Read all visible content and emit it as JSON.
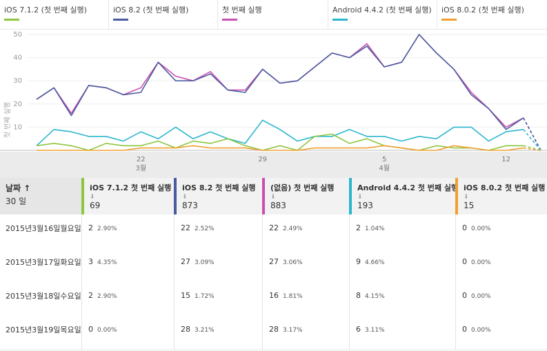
{
  "colors": {
    "ios712": "#8dc63f",
    "ios82": "#4a5b9e",
    "first": "#c94fb0",
    "android": "#2ab6cc",
    "ios802": "#f0a030",
    "grid": "#eeeeee",
    "axis": "#999999"
  },
  "legend": [
    {
      "label": "iOS 7.1.2 (첫 번째 실행)",
      "color": "#8dc63f"
    },
    {
      "label": "iOS 8.2 (첫 번째 실행)",
      "color": "#4a5b9e"
    },
    {
      "label": "첫 번째 실행",
      "color": "#c94fb0"
    },
    {
      "label": "Android 4.4.2 (첫 번째 실행)",
      "color": "#2ab6cc"
    },
    {
      "label": "iOS 8.0.2 (첫 번째 실행)",
      "color": "#f0a030"
    }
  ],
  "chart_data": {
    "type": "line",
    "ylabel": "첫 번째 실행",
    "ylim": [
      0,
      50
    ],
    "yticks": [
      10,
      20,
      30,
      40,
      50
    ],
    "x": [
      16,
      17,
      18,
      19,
      20,
      21,
      22,
      23,
      24,
      25,
      26,
      27,
      28,
      29,
      30,
      31,
      1,
      2,
      3,
      4,
      5,
      6,
      7,
      8,
      9,
      10,
      11,
      12,
      13,
      14
    ],
    "xticks": [
      {
        "day": 22,
        "label": "22",
        "sub": "3월"
      },
      {
        "day": 29,
        "label": "29",
        "sub": ""
      },
      {
        "day": 5,
        "label": "5",
        "sub": "4월"
      },
      {
        "day": 12,
        "label": "12",
        "sub": ""
      }
    ],
    "dashed_last_segment": true,
    "series": [
      {
        "key": "first",
        "name": "첫 번째 실행",
        "values": [
          22,
          27,
          16,
          28,
          27,
          24,
          27,
          38,
          32,
          30,
          34,
          26,
          26,
          35,
          29,
          30,
          36,
          42,
          40,
          46,
          36,
          38,
          50,
          42,
          35,
          25,
          18,
          10,
          14,
          0
        ]
      },
      {
        "key": "ios82",
        "name": "iOS 8.2 (첫 번째 실행)",
        "values": [
          22,
          27,
          15,
          28,
          27,
          24,
          25,
          38,
          30,
          30,
          33,
          26,
          25,
          35,
          29,
          30,
          36,
          42,
          40,
          45,
          36,
          38,
          50,
          42,
          35,
          24,
          18,
          9,
          14,
          0
        ]
      },
      {
        "key": "android",
        "name": "Android 4.4.2 (첫 번째 실행)",
        "values": [
          2,
          9,
          8,
          6,
          6,
          4,
          8,
          5,
          10,
          5,
          8,
          5,
          3,
          13,
          9,
          4,
          6,
          6,
          9,
          6,
          6,
          4,
          6,
          5,
          10,
          10,
          4,
          8,
          9,
          0
        ]
      },
      {
        "key": "ios712",
        "name": "iOS 7.1.2 (첫 번째 실행)",
        "values": [
          2,
          3,
          2,
          0,
          3,
          2,
          2,
          4,
          1,
          4,
          3,
          5,
          2,
          0,
          2,
          0,
          6,
          7,
          3,
          5,
          2,
          1,
          0,
          2,
          1,
          1,
          0,
          2,
          2,
          0
        ]
      },
      {
        "key": "ios802",
        "name": "iOS 8.0.2 (첫 번째 실행)",
        "values": [
          0,
          0,
          0,
          0,
          0,
          0,
          1,
          1,
          1,
          2,
          1,
          1,
          1,
          0,
          0,
          0,
          1,
          1,
          1,
          1,
          2,
          1,
          0,
          0,
          2,
          1,
          0,
          0,
          1,
          0
        ]
      }
    ]
  },
  "table": {
    "date_header": "날짜",
    "sort_arrow": "↑",
    "date_sub": "30 일",
    "columns": [
      {
        "label": "iOS 7.1.2 첫 번째 실행",
        "total": "69",
        "color": "#8dc63f"
      },
      {
        "label": "iOS 8.2 첫 번째 실행",
        "total": "873",
        "color": "#4a5b9e"
      },
      {
        "label": "(없음) 첫 번째 실행",
        "total": "883",
        "color": "#c94fb0"
      },
      {
        "label": "Android 4.4.2 첫 번째 실행",
        "total": "193",
        "color": "#2ab6cc"
      },
      {
        "label": "iOS 8.0.2 첫 번째 실행",
        "total": "15",
        "color": "#f0a030"
      }
    ],
    "down_arrow": "⬇",
    "rows": [
      {
        "date": "2015년3월16일월요일",
        "cells": [
          [
            "2",
            "2.90%"
          ],
          [
            "22",
            "2.52%"
          ],
          [
            "22",
            "2.49%"
          ],
          [
            "2",
            "1.04%"
          ],
          [
            "0",
            "0.00%"
          ]
        ]
      },
      {
        "date": "2015년3월17일화요일",
        "cells": [
          [
            "3",
            "4.35%"
          ],
          [
            "27",
            "3.09%"
          ],
          [
            "27",
            "3.06%"
          ],
          [
            "9",
            "4.66%"
          ],
          [
            "0",
            "0.00%"
          ]
        ]
      },
      {
        "date": "2015년3월18일수요일",
        "cells": [
          [
            "2",
            "2.90%"
          ],
          [
            "15",
            "1.72%"
          ],
          [
            "16",
            "1.81%"
          ],
          [
            "8",
            "4.15%"
          ],
          [
            "0",
            "0.00%"
          ]
        ]
      },
      {
        "date": "2015년3월19일목요일",
        "cells": [
          [
            "0",
            "0.00%"
          ],
          [
            "28",
            "3.21%"
          ],
          [
            "28",
            "3.17%"
          ],
          [
            "6",
            "3.11%"
          ],
          [
            "0",
            "0.00%"
          ]
        ]
      }
    ]
  }
}
